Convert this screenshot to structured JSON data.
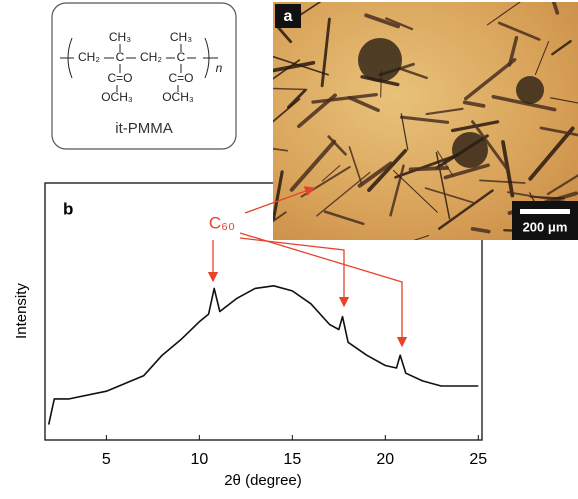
{
  "structure": {
    "labels": [
      "CH₃",
      "CH₃",
      "CH₂",
      "C",
      "CH₂",
      "C",
      "C=O",
      "C=O",
      "OCH₃",
      "OCH₃",
      "n"
    ],
    "name": "it-PMMA"
  },
  "micrograph": {
    "label": "a",
    "scale_bar": "200 μm"
  },
  "chart_data": {
    "type": "line",
    "panel_label": "b",
    "annotation": "C₆₀",
    "x_label": "2θ (degree)",
    "y_label": "Intensity",
    "xlim": [
      1.7,
      25.2
    ],
    "xticks": [
      5,
      10,
      15,
      20,
      25
    ],
    "ylim": [
      0,
      100
    ],
    "x": [
      1.9,
      2.2,
      3,
      5,
      7,
      8,
      9,
      10,
      10.5,
      10.8,
      11.1,
      12,
      13,
      14,
      15,
      16,
      17,
      17.5,
      17.7,
      18,
      19,
      20,
      20.6,
      20.8,
      21.1,
      22,
      23,
      24,
      25
    ],
    "series": [
      {
        "color": "#111111",
        "values": [
          6,
          16,
          16,
          19,
          25,
          33,
          39,
          46,
          49,
          59,
          50,
          55,
          59,
          60,
          58,
          53,
          45,
          43,
          48,
          38,
          33,
          29,
          28,
          33,
          26,
          23,
          21,
          21,
          21
        ]
      }
    ]
  }
}
